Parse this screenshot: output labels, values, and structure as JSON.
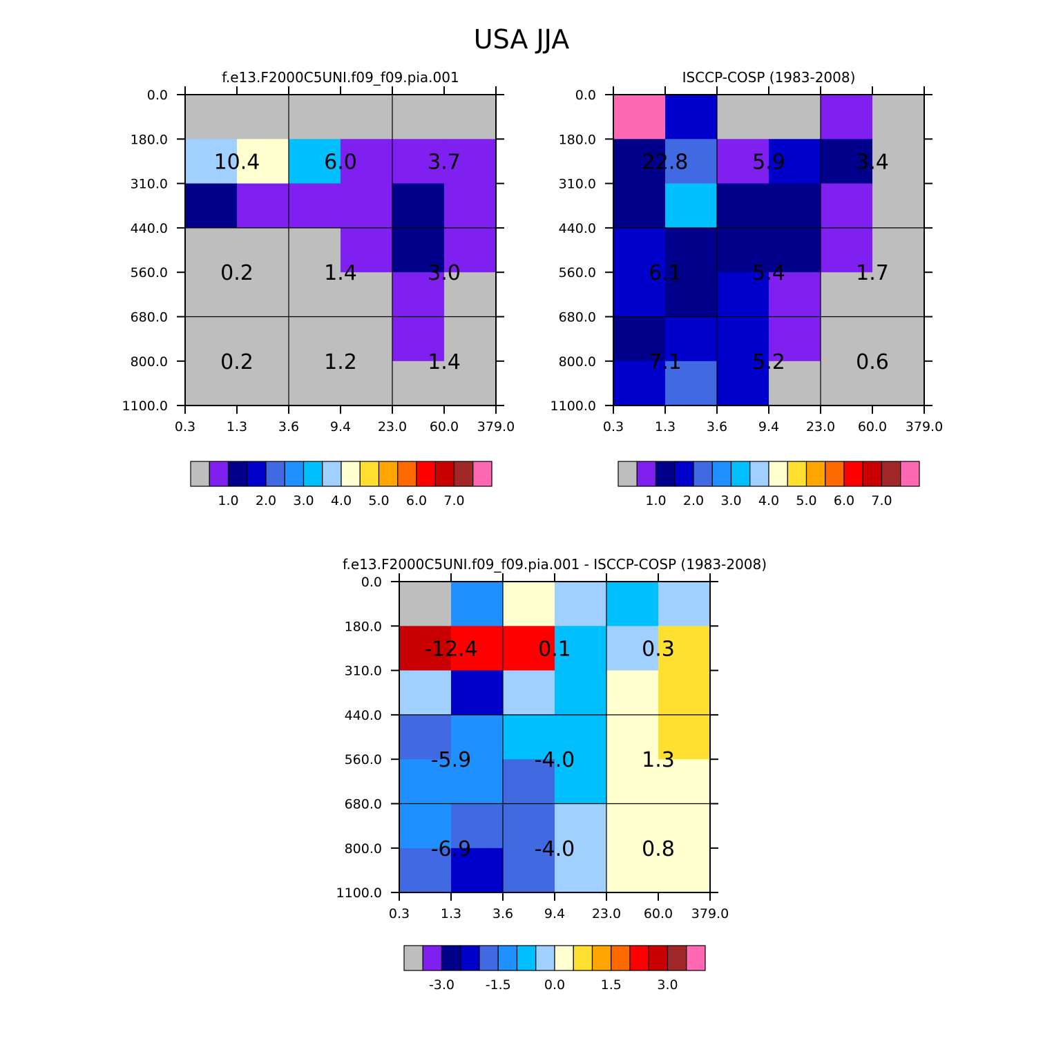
{
  "title": "USA JJA",
  "colors": {
    "palette": [
      "#bebebe",
      "#8020f0",
      "#00008b",
      "#0000cd",
      "#4169e1",
      "#1e90ff",
      "#00bfff",
      "#a0d0ff",
      "#ffffd0",
      "#ffe030",
      "#ffa500",
      "#ff6a00",
      "#ff0000",
      "#c80000",
      "#a02828",
      "#ff69b4"
    ]
  },
  "chart_data": [
    {
      "type": "heatmap",
      "title": "f.e13.F2000C5UNI.f09_f09.pia.001",
      "x_ticks": [
        "0.3",
        "1.3",
        "3.6",
        "9.4",
        "23.0",
        "60.0",
        "379.0"
      ],
      "y_ticks": [
        "0.0",
        "180.0",
        "310.0",
        "440.0",
        "560.0",
        "680.0",
        "800.0",
        "1100.0"
      ],
      "cell_color_index": [
        [
          0,
          0,
          0,
          0,
          0,
          0
        ],
        [
          7,
          8,
          6,
          1,
          1,
          1
        ],
        [
          2,
          1,
          1,
          1,
          2,
          1
        ],
        [
          0,
          0,
          0,
          1,
          2,
          1
        ],
        [
          0,
          0,
          0,
          0,
          1,
          0
        ],
        [
          0,
          0,
          0,
          0,
          1,
          0
        ],
        [
          0,
          0,
          0,
          0,
          0,
          0
        ]
      ],
      "block_labels": [
        [
          "10.4",
          "6.0",
          "3.7"
        ],
        [
          "0.2",
          "1.4",
          "3.0"
        ],
        [
          "0.2",
          "1.2",
          "1.4"
        ]
      ],
      "colorbar_labels": [
        "1.0",
        "2.0",
        "3.0",
        "4.0",
        "5.0",
        "6.0",
        "7.0"
      ]
    },
    {
      "type": "heatmap",
      "title": "ISCCP-COSP (1983-2008)",
      "x_ticks": [
        "0.3",
        "1.3",
        "3.6",
        "9.4",
        "23.0",
        "60.0",
        "379.0"
      ],
      "y_ticks": [
        "0.0",
        "180.0",
        "310.0",
        "440.0",
        "560.0",
        "680.0",
        "800.0",
        "1100.0"
      ],
      "cell_color_index": [
        [
          15,
          3,
          0,
          0,
          1,
          0
        ],
        [
          2,
          4,
          1,
          3,
          2,
          0
        ],
        [
          2,
          6,
          2,
          2,
          1,
          0
        ],
        [
          3,
          2,
          2,
          2,
          1,
          0
        ],
        [
          3,
          2,
          3,
          1,
          0,
          0
        ],
        [
          2,
          3,
          3,
          1,
          0,
          0
        ],
        [
          3,
          4,
          3,
          0,
          0,
          0
        ]
      ],
      "block_labels": [
        [
          "22.8",
          "5.9",
          "3.4"
        ],
        [
          "6.1",
          "5.4",
          "1.7"
        ],
        [
          "7.1",
          "5.2",
          "0.6"
        ]
      ],
      "colorbar_labels": [
        "1.0",
        "2.0",
        "3.0",
        "4.0",
        "5.0",
        "6.0",
        "7.0"
      ]
    },
    {
      "type": "heatmap",
      "title": "f.e13.F2000C5UNI.f09_f09.pia.001 - ISCCP-COSP (1983-2008)",
      "x_ticks": [
        "0.3",
        "1.3",
        "3.6",
        "9.4",
        "23.0",
        "60.0",
        "379.0"
      ],
      "y_ticks": [
        "0.0",
        "180.0",
        "310.0",
        "440.0",
        "560.0",
        "680.0",
        "800.0",
        "1100.0"
      ],
      "cell_color_index": [
        [
          0,
          5,
          8,
          7,
          6,
          7
        ],
        [
          13,
          12,
          12,
          6,
          7,
          9
        ],
        [
          7,
          3,
          7,
          6,
          8,
          9
        ],
        [
          4,
          5,
          6,
          6,
          8,
          9
        ],
        [
          5,
          5,
          4,
          6,
          8,
          8
        ],
        [
          5,
          4,
          4,
          7,
          8,
          8
        ],
        [
          4,
          3,
          4,
          7,
          8,
          8
        ]
      ],
      "block_labels": [
        [
          "-12.4",
          "0.1",
          "0.3"
        ],
        [
          "-5.9",
          "-4.0",
          "1.3"
        ],
        [
          "-6.9",
          "-4.0",
          "0.8"
        ]
      ],
      "colorbar_labels": [
        "-3.0",
        "-1.5",
        "0.0",
        "1.5",
        "3.0"
      ]
    }
  ]
}
